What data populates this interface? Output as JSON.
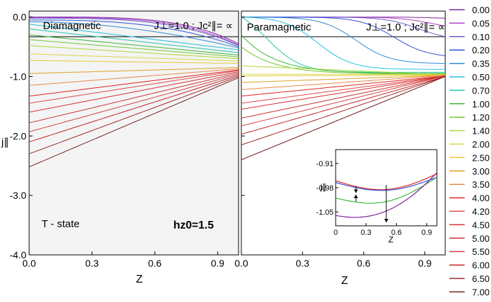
{
  "chart_data": {
    "type": "line",
    "panels": [
      {
        "title_left": "Diamagnetic",
        "title_right": "J⊥=1.0 ; Jc²∥= ∝",
        "annotation_state": "T - state",
        "annotation_h": "hz0=1.5",
        "xlabel": "Z",
        "ylabel": "j∥",
        "xlim": [
          0.0,
          1.0
        ],
        "ylim": [
          -4.0,
          0.1
        ],
        "xticks": [
          "0.0",
          "0.3",
          "0.6",
          "0.9"
        ],
        "yticks": [
          "0.0",
          "-1.0",
          "-2.0",
          "-3.0",
          "-4.0"
        ]
      },
      {
        "title_left": "Paramagnetic",
        "title_right": "J⊥=1.0 ; Jc²∥= ∝",
        "xlabel": "Z",
        "xlim": [
          0.0,
          1.0
        ],
        "ylim": [
          -4.0,
          0.1
        ],
        "xticks": [
          "0.0",
          "0.3",
          "0.6",
          "0.9"
        ]
      }
    ],
    "inset": {
      "xlabel": "Z",
      "ylabel": "j∥",
      "xticks": [
        "0",
        "0.3",
        "0.6",
        "0.9"
      ],
      "yticks": [
        "-0.91",
        "-0.98",
        "-1.05"
      ],
      "xlim": [
        0.0,
        1.0
      ],
      "ylim": [
        -1.09,
        -0.87
      ]
    },
    "legend": {
      "position": "right",
      "entries": [
        "0.00",
        "0.05",
        "0.10",
        "0.20",
        "0.35",
        "0.50",
        "0.70",
        "1.00",
        "1.20",
        "1.40",
        "2.00",
        "2.50",
        "3.00",
        "3.50",
        "4.00",
        "4.20",
        "4.50",
        "5.00",
        "5.50",
        "6.00",
        "6.50",
        "7.00"
      ],
      "colors": [
        "#7f1fa0",
        "#b040c8",
        "#6a5acd",
        "#3050d8",
        "#2a8ad8",
        "#20c0e0",
        "#22c8a8",
        "#38b838",
        "#70c830",
        "#a8d830",
        "#d8d848",
        "#e8c838",
        "#e0a020",
        "#e88848",
        "#e02020",
        "#e04848",
        "#d83030",
        "#c83030",
        "#d04040",
        "#c02020",
        "#a02828",
        "#702020"
      ]
    },
    "series_params": {
      "hz0": [
        0.0,
        0.05,
        0.1,
        0.2,
        0.35,
        0.5,
        0.7,
        1.0,
        1.2,
        1.4,
        2.0,
        2.5,
        3.0,
        3.5,
        4.0,
        4.2,
        4.5,
        5.0,
        5.5,
        6.0,
        6.5,
        7.0
      ],
      "diamagnetic_start": [
        0.0,
        -0.01,
        -0.02,
        -0.05,
        -0.08,
        -0.12,
        -0.2,
        -0.3,
        -0.38,
        -0.48,
        -0.62,
        -0.73,
        -0.95,
        -1.15,
        -1.33,
        -1.45,
        -1.6,
        -1.78,
        -1.93,
        -2.1,
        -2.3,
        -2.52
      ],
      "diamagnetic_end": [
        -0.45,
        -0.47,
        -0.48,
        -0.5,
        -0.52,
        -0.55,
        -0.6,
        -0.64,
        -0.67,
        -0.7,
        -0.74,
        -0.78,
        -0.85,
        -0.87,
        -0.89,
        -0.9,
        -0.92,
        -0.94,
        -0.96,
        -0.98,
        -1.0,
        -1.02
      ],
      "paramagnetic_start": [
        0.0,
        0.0,
        0.0,
        0.0,
        0.0,
        0.0,
        0.0,
        -0.3,
        -0.5,
        -0.82,
        -0.96,
        -0.99,
        -1.1,
        -1.22,
        -1.33,
        -1.45,
        -1.55,
        -1.7,
        -1.83,
        -1.97,
        -2.15,
        -2.4
      ],
      "paramagnetic_end": [
        -0.02,
        -0.15,
        -0.33,
        -0.65,
        -0.78,
        -0.88,
        -0.93,
        -0.95,
        -0.96,
        -0.97,
        -0.97,
        -0.98,
        -0.98,
        -0.98,
        -0.99,
        -0.99,
        -0.99,
        -0.99,
        -0.99,
        -1.0,
        -1.0,
        -1.0
      ]
    }
  }
}
